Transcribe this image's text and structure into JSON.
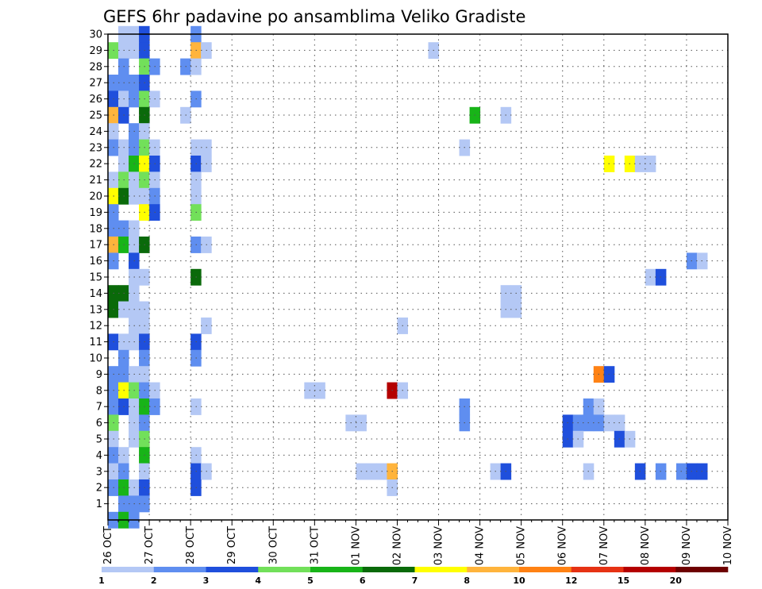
{
  "chart_data": {
    "type": "heatmap",
    "title": "GEFS 6hr padavine po ansamblima Veliko Gradiste",
    "xlabel": "",
    "ylabel": "",
    "x_tick_labels": [
      "26 OCT",
      "27 OCT",
      "28 OCT",
      "29 OCT",
      "30 OCT",
      "31 OCT",
      "01 NOV",
      "02 NOV",
      "03 NOV",
      "04 NOV",
      "05 NOV",
      "06 NOV",
      "07 NOV",
      "08 NOV",
      "09 NOV",
      "10 NOV"
    ],
    "y_tick_labels": [
      "1",
      "2",
      "3",
      "4",
      "5",
      "6",
      "7",
      "8",
      "9",
      "10",
      "11",
      "12",
      "13",
      "14",
      "15",
      "16",
      "17",
      "18",
      "19",
      "20",
      "21",
      "22",
      "23",
      "24",
      "25",
      "26",
      "27",
      "28",
      "29",
      "30"
    ],
    "xlim_steps": [
      0,
      60
    ],
    "ylim": [
      0,
      30
    ],
    "grid": true,
    "colorbar": {
      "colors": [
        "#b4c8f5",
        "#5f8ef0",
        "#1f4fdc",
        "#72e05a",
        "#18b418",
        "#0a6a0a",
        "#ffff00",
        "#ffb43c",
        "#ff8214",
        "#e63214",
        "#b40000",
        "#6e0000"
      ],
      "labels": [
        "1",
        "2",
        "3",
        "4",
        "5",
        "6",
        "7",
        "8",
        "10",
        "12",
        "15",
        "20"
      ]
    },
    "cells_legend": "x = 6-hour step index from 26 OCT 00UTC, y = ensemble member row, c = colorbar bin index (0 = 1-2 mm)",
    "cells": [
      {
        "x": 1,
        "y": 30,
        "c": 0
      },
      {
        "x": 2,
        "y": 30,
        "c": 0
      },
      {
        "x": 3,
        "y": 30,
        "c": 2
      },
      {
        "x": 8,
        "y": 30,
        "c": 1
      },
      {
        "x": 0,
        "y": 29,
        "c": 3
      },
      {
        "x": 1,
        "y": 29,
        "c": 0
      },
      {
        "x": 2,
        "y": 29,
        "c": 0
      },
      {
        "x": 3,
        "y": 29,
        "c": 2
      },
      {
        "x": 8,
        "y": 29,
        "c": 7
      },
      {
        "x": 9,
        "y": 29,
        "c": 0
      },
      {
        "x": 31,
        "y": 29,
        "c": 0
      },
      {
        "x": 1,
        "y": 28,
        "c": 1
      },
      {
        "x": 3,
        "y": 28,
        "c": 3
      },
      {
        "x": 4,
        "y": 28,
        "c": 1
      },
      {
        "x": 7,
        "y": 28,
        "c": 1
      },
      {
        "x": 8,
        "y": 28,
        "c": 0
      },
      {
        "x": 0,
        "y": 27,
        "c": 1
      },
      {
        "x": 1,
        "y": 27,
        "c": 1
      },
      {
        "x": 2,
        "y": 27,
        "c": 1
      },
      {
        "x": 3,
        "y": 27,
        "c": 2
      },
      {
        "x": 0,
        "y": 26,
        "c": 2
      },
      {
        "x": 1,
        "y": 26,
        "c": 0
      },
      {
        "x": 2,
        "y": 26,
        "c": 1
      },
      {
        "x": 3,
        "y": 26,
        "c": 3
      },
      {
        "x": 4,
        "y": 26,
        "c": 0
      },
      {
        "x": 8,
        "y": 26,
        "c": 1
      },
      {
        "x": 0,
        "y": 25,
        "c": 7
      },
      {
        "x": 1,
        "y": 25,
        "c": 2
      },
      {
        "x": 3,
        "y": 25,
        "c": 5
      },
      {
        "x": 7,
        "y": 25,
        "c": 0
      },
      {
        "x": 35,
        "y": 25,
        "c": 4
      },
      {
        "x": 38,
        "y": 25,
        "c": 0
      },
      {
        "x": 0,
        "y": 24,
        "c": 0
      },
      {
        "x": 2,
        "y": 24,
        "c": 1
      },
      {
        "x": 3,
        "y": 24,
        "c": 0
      },
      {
        "x": 0,
        "y": 23,
        "c": 1
      },
      {
        "x": 1,
        "y": 23,
        "c": 0
      },
      {
        "x": 2,
        "y": 23,
        "c": 1
      },
      {
        "x": 3,
        "y": 23,
        "c": 3
      },
      {
        "x": 4,
        "y": 23,
        "c": 0
      },
      {
        "x": 8,
        "y": 23,
        "c": 0
      },
      {
        "x": 9,
        "y": 23,
        "c": 0
      },
      {
        "x": 34,
        "y": 23,
        "c": 0
      },
      {
        "x": 1,
        "y": 22,
        "c": 0
      },
      {
        "x": 2,
        "y": 22,
        "c": 4
      },
      {
        "x": 3,
        "y": 22,
        "c": 6
      },
      {
        "x": 4,
        "y": 22,
        "c": 2
      },
      {
        "x": 8,
        "y": 22,
        "c": 2
      },
      {
        "x": 9,
        "y": 22,
        "c": 0
      },
      {
        "x": 48,
        "y": 22,
        "c": 6
      },
      {
        "x": 50,
        "y": 22,
        "c": 6
      },
      {
        "x": 51,
        "y": 22,
        "c": 0
      },
      {
        "x": 52,
        "y": 22,
        "c": 0
      },
      {
        "x": 0,
        "y": 21,
        "c": 0
      },
      {
        "x": 1,
        "y": 21,
        "c": 3
      },
      {
        "x": 2,
        "y": 21,
        "c": 0
      },
      {
        "x": 3,
        "y": 21,
        "c": 3
      },
      {
        "x": 4,
        "y": 21,
        "c": 0
      },
      {
        "x": 8,
        "y": 21,
        "c": 0
      },
      {
        "x": 0,
        "y": 20,
        "c": 6
      },
      {
        "x": 1,
        "y": 20,
        "c": 5
      },
      {
        "x": 2,
        "y": 20,
        "c": 0
      },
      {
        "x": 3,
        "y": 20,
        "c": 0
      },
      {
        "x": 4,
        "y": 20,
        "c": 1
      },
      {
        "x": 8,
        "y": 20,
        "c": 0
      },
      {
        "x": 0,
        "y": 19,
        "c": 1
      },
      {
        "x": 3,
        "y": 19,
        "c": 6
      },
      {
        "x": 4,
        "y": 19,
        "c": 2
      },
      {
        "x": 8,
        "y": 19,
        "c": 3
      },
      {
        "x": 0,
        "y": 18,
        "c": 1
      },
      {
        "x": 1,
        "y": 18,
        "c": 1
      },
      {
        "x": 2,
        "y": 18,
        "c": 0
      },
      {
        "x": 0,
        "y": 17,
        "c": 7
      },
      {
        "x": 1,
        "y": 17,
        "c": 4
      },
      {
        "x": 2,
        "y": 17,
        "c": 0
      },
      {
        "x": 3,
        "y": 17,
        "c": 5
      },
      {
        "x": 8,
        "y": 17,
        "c": 1
      },
      {
        "x": 9,
        "y": 17,
        "c": 0
      },
      {
        "x": 0,
        "y": 16,
        "c": 1
      },
      {
        "x": 2,
        "y": 16,
        "c": 2
      },
      {
        "x": 56,
        "y": 16,
        "c": 1
      },
      {
        "x": 57,
        "y": 16,
        "c": 0
      },
      {
        "x": 2,
        "y": 15,
        "c": 0
      },
      {
        "x": 3,
        "y": 15,
        "c": 0
      },
      {
        "x": 8,
        "y": 15,
        "c": 5
      },
      {
        "x": 52,
        "y": 15,
        "c": 0
      },
      {
        "x": 53,
        "y": 15,
        "c": 2
      },
      {
        "x": 0,
        "y": 14,
        "c": 5
      },
      {
        "x": 1,
        "y": 14,
        "c": 5
      },
      {
        "x": 2,
        "y": 14,
        "c": 0
      },
      {
        "x": 38,
        "y": 14,
        "c": 0
      },
      {
        "x": 39,
        "y": 14,
        "c": 0
      },
      {
        "x": 0,
        "y": 13,
        "c": 5
      },
      {
        "x": 1,
        "y": 13,
        "c": 0
      },
      {
        "x": 2,
        "y": 13,
        "c": 0
      },
      {
        "x": 3,
        "y": 13,
        "c": 0
      },
      {
        "x": 38,
        "y": 13,
        "c": 0
      },
      {
        "x": 39,
        "y": 13,
        "c": 0
      },
      {
        "x": 2,
        "y": 12,
        "c": 0
      },
      {
        "x": 3,
        "y": 12,
        "c": 0
      },
      {
        "x": 9,
        "y": 12,
        "c": 0
      },
      {
        "x": 28,
        "y": 12,
        "c": 0
      },
      {
        "x": 0,
        "y": 11,
        "c": 2
      },
      {
        "x": 1,
        "y": 11,
        "c": 0
      },
      {
        "x": 2,
        "y": 11,
        "c": 0
      },
      {
        "x": 3,
        "y": 11,
        "c": 2
      },
      {
        "x": 8,
        "y": 11,
        "c": 2
      },
      {
        "x": 1,
        "y": 10,
        "c": 1
      },
      {
        "x": 3,
        "y": 10,
        "c": 1
      },
      {
        "x": 8,
        "y": 10,
        "c": 1
      },
      {
        "x": 0,
        "y": 9,
        "c": 1
      },
      {
        "x": 1,
        "y": 9,
        "c": 1
      },
      {
        "x": 2,
        "y": 9,
        "c": 0
      },
      {
        "x": 3,
        "y": 9,
        "c": 0
      },
      {
        "x": 47,
        "y": 9,
        "c": 8
      },
      {
        "x": 48,
        "y": 9,
        "c": 2
      },
      {
        "x": 0,
        "y": 8,
        "c": 1
      },
      {
        "x": 1,
        "y": 8,
        "c": 6
      },
      {
        "x": 2,
        "y": 8,
        "c": 3
      },
      {
        "x": 3,
        "y": 8,
        "c": 1
      },
      {
        "x": 4,
        "y": 8,
        "c": 0
      },
      {
        "x": 19,
        "y": 8,
        "c": 0
      },
      {
        "x": 20,
        "y": 8,
        "c": 0
      },
      {
        "x": 27,
        "y": 8,
        "c": 10
      },
      {
        "x": 28,
        "y": 8,
        "c": 0
      },
      {
        "x": 0,
        "y": 7,
        "c": 1
      },
      {
        "x": 1,
        "y": 7,
        "c": 2
      },
      {
        "x": 2,
        "y": 7,
        "c": 0
      },
      {
        "x": 3,
        "y": 7,
        "c": 4
      },
      {
        "x": 4,
        "y": 7,
        "c": 1
      },
      {
        "x": 8,
        "y": 7,
        "c": 0
      },
      {
        "x": 34,
        "y": 7,
        "c": 1
      },
      {
        "x": 46,
        "y": 7,
        "c": 1
      },
      {
        "x": 47,
        "y": 7,
        "c": 0
      },
      {
        "x": 0,
        "y": 6,
        "c": 3
      },
      {
        "x": 2,
        "y": 6,
        "c": 0
      },
      {
        "x": 3,
        "y": 6,
        "c": 1
      },
      {
        "x": 23,
        "y": 6,
        "c": 0
      },
      {
        "x": 24,
        "y": 6,
        "c": 0
      },
      {
        "x": 34,
        "y": 6,
        "c": 1
      },
      {
        "x": 44,
        "y": 6,
        "c": 2
      },
      {
        "x": 45,
        "y": 6,
        "c": 1
      },
      {
        "x": 46,
        "y": 6,
        "c": 1
      },
      {
        "x": 47,
        "y": 6,
        "c": 1
      },
      {
        "x": 48,
        "y": 6,
        "c": 0
      },
      {
        "x": 49,
        "y": 6,
        "c": 0
      },
      {
        "x": 0,
        "y": 5,
        "c": 0
      },
      {
        "x": 2,
        "y": 5,
        "c": 0
      },
      {
        "x": 3,
        "y": 5,
        "c": 3
      },
      {
        "x": 44,
        "y": 5,
        "c": 2
      },
      {
        "x": 45,
        "y": 5,
        "c": 0
      },
      {
        "x": 49,
        "y": 5,
        "c": 2
      },
      {
        "x": 50,
        "y": 5,
        "c": 0
      },
      {
        "x": 0,
        "y": 4,
        "c": 1
      },
      {
        "x": 1,
        "y": 4,
        "c": 0
      },
      {
        "x": 3,
        "y": 4,
        "c": 4
      },
      {
        "x": 8,
        "y": 4,
        "c": 0
      },
      {
        "x": 0,
        "y": 3,
        "c": 0
      },
      {
        "x": 1,
        "y": 3,
        "c": 1
      },
      {
        "x": 3,
        "y": 3,
        "c": 0
      },
      {
        "x": 8,
        "y": 3,
        "c": 2
      },
      {
        "x": 9,
        "y": 3,
        "c": 0
      },
      {
        "x": 24,
        "y": 3,
        "c": 0
      },
      {
        "x": 25,
        "y": 3,
        "c": 0
      },
      {
        "x": 26,
        "y": 3,
        "c": 0
      },
      {
        "x": 27,
        "y": 3,
        "c": 7
      },
      {
        "x": 37,
        "y": 3,
        "c": 0
      },
      {
        "x": 38,
        "y": 3,
        "c": 2
      },
      {
        "x": 46,
        "y": 3,
        "c": 0
      },
      {
        "x": 51,
        "y": 3,
        "c": 2
      },
      {
        "x": 53,
        "y": 3,
        "c": 1
      },
      {
        "x": 55,
        "y": 3,
        "c": 1
      },
      {
        "x": 56,
        "y": 3,
        "c": 2
      },
      {
        "x": 57,
        "y": 3,
        "c": 2
      },
      {
        "x": 0,
        "y": 2,
        "c": 1
      },
      {
        "x": 1,
        "y": 2,
        "c": 4
      },
      {
        "x": 2,
        "y": 2,
        "c": 0
      },
      {
        "x": 3,
        "y": 2,
        "c": 2
      },
      {
        "x": 8,
        "y": 2,
        "c": 2
      },
      {
        "x": 27,
        "y": 2,
        "c": 0
      },
      {
        "x": 1,
        "y": 1,
        "c": 1
      },
      {
        "x": 2,
        "y": 1,
        "c": 1
      },
      {
        "x": 3,
        "y": 1,
        "c": 1
      },
      {
        "x": 0,
        "y": 0,
        "c": 1
      },
      {
        "x": 1,
        "y": 0,
        "c": 4
      },
      {
        "x": 2,
        "y": 0,
        "c": 1
      }
    ]
  }
}
